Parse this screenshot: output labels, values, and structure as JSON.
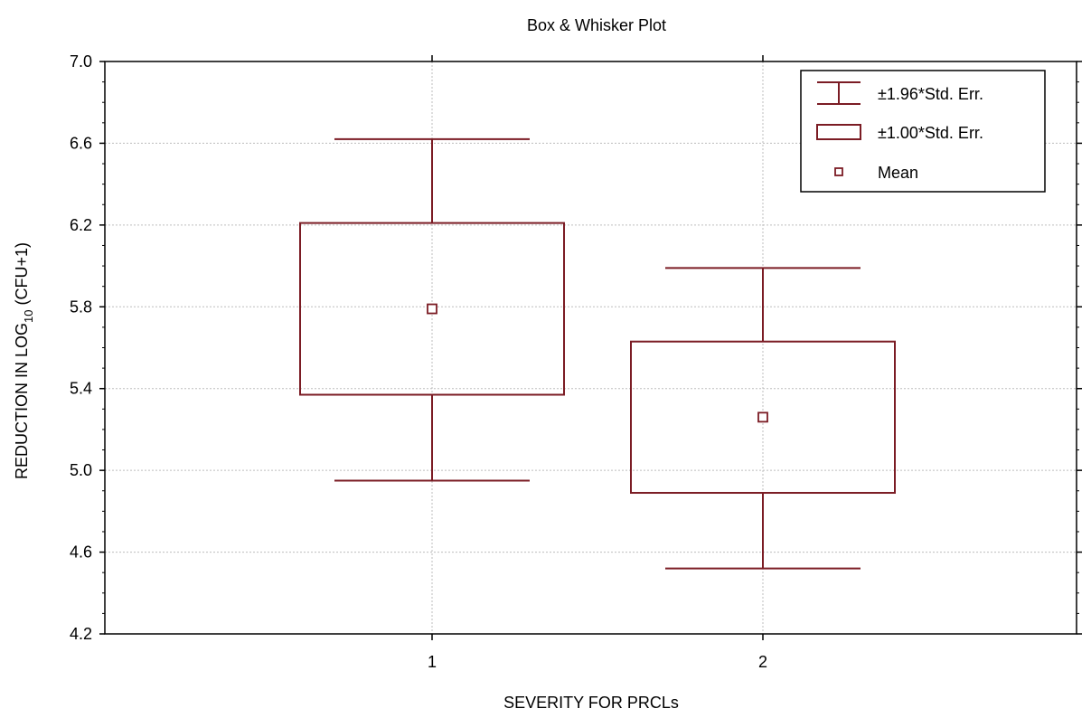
{
  "chart_data": {
    "type": "box",
    "title": "Box & Whisker Plot",
    "xlabel": "SEVERITY FOR PRCLs",
    "ylabel_main": "REDUCTION IN LOG",
    "ylabel_sub": "10",
    "ylabel_tail": " (CFU+1)",
    "categories": [
      "1",
      "2"
    ],
    "ylim": [
      4.2,
      7.0
    ],
    "yticks": [
      "4.2",
      "4.6",
      "5.0",
      "5.4",
      "5.8",
      "6.2",
      "6.6",
      "7.0"
    ],
    "grid": true,
    "legend_position": "top-right",
    "color": "#7b1c24",
    "groups": [
      {
        "category": "1",
        "mean": 5.79,
        "box_low": 5.37,
        "box_high": 6.21,
        "whisker_low": 4.95,
        "whisker_high": 6.62
      },
      {
        "category": "2",
        "mean": 5.26,
        "box_low": 4.89,
        "box_high": 5.63,
        "whisker_low": 4.52,
        "whisker_high": 5.99
      }
    ],
    "legend": [
      {
        "symbol": "whisker",
        "label": "±1.96*Std. Err."
      },
      {
        "symbol": "box",
        "label": "±1.00*Std. Err."
      },
      {
        "symbol": "mean",
        "label": "Mean"
      }
    ]
  }
}
